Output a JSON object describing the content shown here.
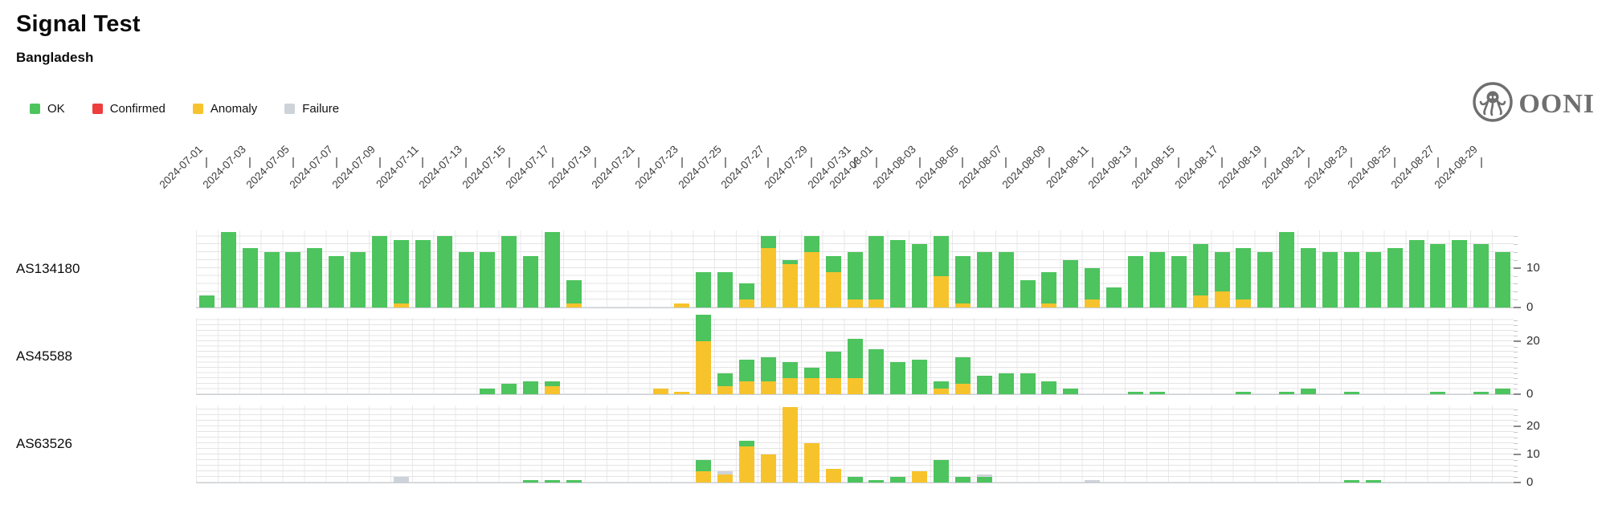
{
  "header": {
    "title": "Signal Test",
    "subtitle": "Bangladesh"
  },
  "legend": [
    {
      "label": "OK",
      "color": "#4dc45e"
    },
    {
      "label": "Confirmed",
      "color": "#ee3d3d"
    },
    {
      "label": "Anomaly",
      "color": "#f7c32d"
    },
    {
      "label": "Failure",
      "color": "#ced3da"
    }
  ],
  "logo": {
    "text": "OONI"
  },
  "chart_data": {
    "type": "bar",
    "stacked": true,
    "stack_order_bottom_to_top": [
      "anomaly",
      "ok",
      "failure"
    ],
    "date_range": [
      "2024-07-01",
      "2024-08-30"
    ],
    "x_tick_labels": [
      "2024-07-01",
      "2024-07-03",
      "2024-07-05",
      "2024-07-07",
      "2024-07-09",
      "2024-07-11",
      "2024-07-13",
      "2024-07-15",
      "2024-07-17",
      "2024-07-19",
      "2024-07-21",
      "2024-07-23",
      "2024-07-25",
      "2024-07-27",
      "2024-07-29",
      "2024-07-31",
      "2024-08-01",
      "2024-08-03",
      "2024-08-05",
      "2024-08-07",
      "2024-08-09",
      "2024-08-11",
      "2024-08-13",
      "2024-08-15",
      "2024-08-17",
      "2024-08-19",
      "2024-08-21",
      "2024-08-23",
      "2024-08-25",
      "2024-08-27",
      "2024-08-29"
    ],
    "dates": [
      "2024-07-01",
      "2024-07-02",
      "2024-07-03",
      "2024-07-04",
      "2024-07-05",
      "2024-07-06",
      "2024-07-07",
      "2024-07-08",
      "2024-07-09",
      "2024-07-10",
      "2024-07-11",
      "2024-07-12",
      "2024-07-13",
      "2024-07-14",
      "2024-07-15",
      "2024-07-16",
      "2024-07-17",
      "2024-07-18",
      "2024-07-19",
      "2024-07-20",
      "2024-07-21",
      "2024-07-22",
      "2024-07-23",
      "2024-07-24",
      "2024-07-25",
      "2024-07-26",
      "2024-07-27",
      "2024-07-28",
      "2024-07-29",
      "2024-07-30",
      "2024-07-31",
      "2024-08-01",
      "2024-08-02",
      "2024-08-03",
      "2024-08-04",
      "2024-08-05",
      "2024-08-06",
      "2024-08-07",
      "2024-08-08",
      "2024-08-09",
      "2024-08-10",
      "2024-08-11",
      "2024-08-12",
      "2024-08-13",
      "2024-08-14",
      "2024-08-15",
      "2024-08-16",
      "2024-08-17",
      "2024-08-18",
      "2024-08-19",
      "2024-08-20",
      "2024-08-21",
      "2024-08-22",
      "2024-08-23",
      "2024-08-24",
      "2024-08-25",
      "2024-08-26",
      "2024-08-27",
      "2024-08-28",
      "2024-08-29",
      "2024-08-30"
    ],
    "rows": [
      {
        "label": "AS134180",
        "y_ticks": [
          0,
          10
        ],
        "y_max": 19.5,
        "series": {
          "ok": [
            3,
            19,
            15,
            14,
            14,
            15,
            13,
            14,
            18,
            16,
            17,
            18,
            14,
            14,
            18,
            13,
            19,
            6,
            0,
            0,
            0,
            0,
            0,
            9,
            9,
            4,
            3,
            1,
            4,
            4,
            12,
            16,
            17,
            16,
            10,
            12,
            14,
            14,
            7,
            8,
            12,
            8,
            5,
            13,
            14,
            13,
            13,
            10,
            13,
            14,
            19,
            15,
            14,
            14,
            14,
            15,
            17,
            16,
            17,
            16,
            14
          ],
          "anomaly": [
            0,
            0,
            0,
            0,
            0,
            0,
            0,
            0,
            0,
            1,
            0,
            0,
            0,
            0,
            0,
            0,
            0,
            1,
            0,
            0,
            0,
            0,
            1,
            0,
            0,
            2,
            15,
            11,
            14,
            9,
            2,
            2,
            0,
            0,
            8,
            1,
            0,
            0,
            0,
            1,
            0,
            2,
            0,
            0,
            0,
            0,
            3,
            4,
            2,
            0,
            0,
            0,
            0,
            0,
            0,
            0,
            0,
            0,
            0,
            0,
            0
          ],
          "failure": [
            0,
            0,
            0,
            0,
            0,
            0,
            0,
            0,
            0,
            0,
            0,
            0,
            0,
            0,
            0,
            0,
            0,
            0,
            0,
            0,
            0,
            0,
            0,
            0,
            0,
            0,
            0,
            0,
            0,
            0,
            0,
            0,
            0,
            0,
            0,
            0,
            0,
            0,
            0,
            0,
            0,
            0,
            0,
            0,
            0,
            0,
            0,
            0,
            0,
            0,
            0,
            0,
            0,
            0,
            0,
            0,
            0,
            0,
            0,
            0,
            0
          ]
        }
      },
      {
        "label": "AS45588",
        "y_ticks": [
          0,
          20
        ],
        "y_max": 28.8,
        "series": {
          "ok": [
            0,
            0,
            0,
            0,
            0,
            0,
            0,
            0,
            0,
            0,
            0,
            0,
            0,
            2,
            4,
            5,
            2,
            0,
            0,
            0,
            0,
            0,
            0,
            10,
            5,
            8,
            9,
            6,
            4,
            10,
            15,
            17,
            12,
            13,
            3,
            10,
            7,
            8,
            8,
            5,
            2,
            0,
            0,
            1,
            1,
            0,
            0,
            0,
            1,
            0,
            1,
            2,
            0,
            1,
            0,
            0,
            0,
            1,
            0,
            1,
            2
          ],
          "anomaly": [
            0,
            0,
            0,
            0,
            0,
            0,
            0,
            0,
            0,
            0,
            0,
            0,
            0,
            0,
            0,
            0,
            3,
            0,
            0,
            0,
            0,
            2,
            1,
            20,
            3,
            5,
            5,
            6,
            6,
            6,
            6,
            0,
            0,
            0,
            2,
            4,
            0,
            0,
            0,
            0,
            0,
            0,
            0,
            0,
            0,
            0,
            0,
            0,
            0,
            0,
            0,
            0,
            0,
            0,
            0,
            0,
            0,
            0,
            0,
            0,
            0
          ],
          "failure": [
            0,
            0,
            0,
            0,
            0,
            0,
            0,
            0,
            0,
            0,
            0,
            0,
            0,
            0,
            0,
            0,
            0,
            0,
            0,
            0,
            0,
            0,
            0,
            0,
            0,
            0,
            0,
            0,
            0,
            0,
            0,
            0,
            0,
            0,
            0,
            0,
            0,
            0,
            0,
            0,
            0,
            0,
            0,
            0,
            0,
            0,
            0,
            0,
            0,
            0,
            0,
            0,
            0,
            0,
            0,
            0,
            0,
            0,
            0,
            0,
            0
          ]
        }
      },
      {
        "label": "AS63526",
        "y_ticks": [
          0,
          10,
          20
        ],
        "y_max": 27.5,
        "series": {
          "ok": [
            0,
            0,
            0,
            0,
            0,
            0,
            0,
            0,
            0,
            0,
            0,
            0,
            0,
            0,
            0,
            1,
            1,
            1,
            0,
            0,
            0,
            0,
            0,
            4,
            0,
            2,
            0,
            0,
            0,
            0,
            2,
            1,
            2,
            0,
            8,
            2,
            2,
            0,
            0,
            0,
            0,
            0,
            0,
            0,
            0,
            0,
            0,
            0,
            0,
            0,
            0,
            0,
            0,
            1,
            1,
            0,
            0,
            0,
            0,
            0,
            0
          ],
          "anomaly": [
            0,
            0,
            0,
            0,
            0,
            0,
            0,
            0,
            0,
            0,
            0,
            0,
            0,
            0,
            0,
            0,
            0,
            0,
            0,
            0,
            0,
            0,
            0,
            4,
            3,
            13,
            10,
            27,
            14,
            5,
            0,
            0,
            0,
            4,
            0,
            0,
            0,
            0,
            0,
            0,
            0,
            0,
            0,
            0,
            0,
            0,
            0,
            0,
            0,
            0,
            0,
            0,
            0,
            0,
            0,
            0,
            0,
            0,
            0,
            0,
            0
          ],
          "failure": [
            0,
            0,
            0,
            0,
            0,
            0,
            0,
            0,
            0,
            2,
            0,
            0,
            0,
            0,
            0,
            0,
            0,
            0,
            0,
            0,
            0,
            0,
            0,
            0,
            1,
            0,
            0,
            0,
            0,
            0,
            0,
            0,
            0,
            0,
            0,
            0,
            1,
            0,
            0,
            0,
            0,
            1,
            0,
            0,
            0,
            0,
            0,
            0,
            0,
            0,
            0,
            0,
            0,
            0,
            0,
            0,
            0,
            0,
            0,
            0,
            0
          ]
        }
      }
    ]
  }
}
